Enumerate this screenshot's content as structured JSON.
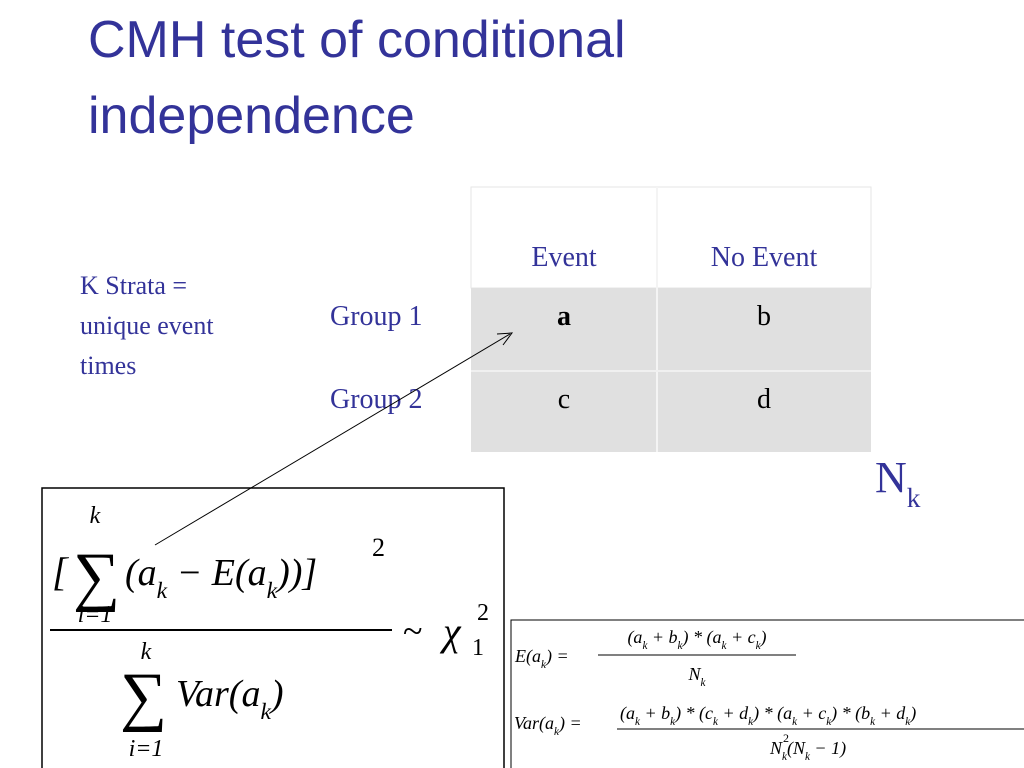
{
  "title": "CMH test of conditional independence",
  "note": [
    "K Strata =",
    "unique event",
    "times"
  ],
  "table": {
    "header": [
      "Event",
      "No Event"
    ],
    "rows": [
      [
        "Group 1",
        "a",
        "b"
      ],
      [
        "Group 2",
        "c",
        "d"
      ]
    ]
  },
  "n_label": [
    "N",
    "k"
  ],
  "statistic": {
    "open": "[",
    "sum": "∑",
    "sum_upper": "k",
    "sum_lower": "i=1",
    "numerator": [
      "(a",
      "k",
      " − E(a",
      "k",
      "))]"
    ],
    "power": "2",
    "denominator": [
      "Var(a",
      "k",
      ")"
    ],
    "relation": "~",
    "chi": "χ",
    "chi_sub": "1",
    "chi_sup": "2"
  },
  "definitions": {
    "expected": {
      "lhs": [
        "E(a",
        "k",
        ") = "
      ],
      "numerator": [
        "(a",
        "k",
        " + b",
        "k",
        ") * (a",
        "k",
        " + c",
        "k",
        ")"
      ],
      "denominator": [
        "N",
        "k"
      ]
    },
    "variance": {
      "lhs": [
        "Var(a",
        "k",
        ") = "
      ],
      "numerator": [
        "(a",
        "k",
        " + b",
        "k",
        ") * (c",
        "k",
        " + d",
        "k",
        ") * (a",
        "k",
        " + c",
        "k",
        ") * (b",
        "k",
        " + d",
        "k",
        ")"
      ],
      "denominator": [
        "N",
        "k",
        "(N",
        "k",
        " − 1)"
      ],
      "denominator_power": "2"
    }
  }
}
